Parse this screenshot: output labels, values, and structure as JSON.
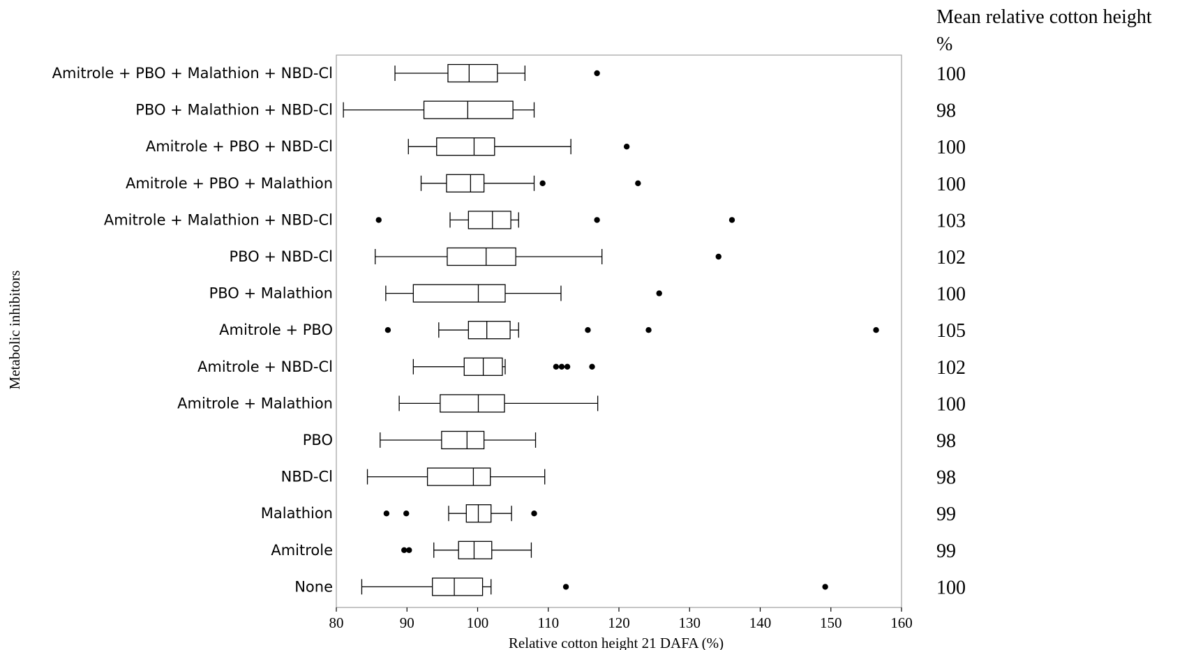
{
  "chart_data": {
    "type": "boxplot",
    "orientation": "horizontal",
    "xlabel": "Relative cotton height 21 DAFA (%)",
    "ylabel": "Metabolic inhibitors",
    "xlim": [
      80,
      160
    ],
    "xticks": [
      80,
      90,
      100,
      110,
      120,
      130,
      140,
      150,
      160
    ],
    "right_header": [
      "Mean relative cotton height",
      "%"
    ],
    "groups": [
      {
        "label": "Amitrole + PBO + Malathion + NBD-Cl",
        "whisker_low": 88.3,
        "q1": 95.8,
        "median": 98.8,
        "q3": 102.8,
        "whisker_high": 106.7,
        "outliers": [
          116.9
        ],
        "mean": "100"
      },
      {
        "label": "PBO + Malathion + NBD-Cl",
        "whisker_low": 81.0,
        "q1": 92.4,
        "median": 98.6,
        "q3": 105.0,
        "whisker_high": 108.0,
        "outliers": [],
        "mean": "98"
      },
      {
        "label": "Amitrole + PBO + NBD-Cl",
        "whisker_low": 90.2,
        "q1": 94.2,
        "median": 99.5,
        "q3": 102.4,
        "whisker_high": 113.2,
        "outliers": [
          121.1
        ],
        "mean": "100"
      },
      {
        "label": "Amitrole + PBO + Malathion",
        "whisker_low": 92.0,
        "q1": 95.6,
        "median": 99.0,
        "q3": 100.9,
        "whisker_high": 108.0,
        "outliers": [
          109.2,
          122.7
        ],
        "mean": "100"
      },
      {
        "label": "Amitrole + Malathion + NBD-Cl",
        "whisker_low": 96.1,
        "q1": 98.7,
        "median": 102.1,
        "q3": 104.7,
        "whisker_high": 105.8,
        "outliers": [
          86.0,
          116.9,
          136.0
        ],
        "mean": "103"
      },
      {
        "label": "PBO + NBD-Cl",
        "whisker_low": 85.5,
        "q1": 95.7,
        "median": 101.2,
        "q3": 105.4,
        "whisker_high": 117.6,
        "outliers": [
          134.1
        ],
        "mean": "102"
      },
      {
        "label": "PBO + Malathion",
        "whisker_low": 87.0,
        "q1": 90.9,
        "median": 100.1,
        "q3": 103.9,
        "whisker_high": 111.8,
        "outliers": [
          125.7
        ],
        "mean": "100"
      },
      {
        "label": "Amitrole + PBO",
        "whisker_low": 94.5,
        "q1": 98.7,
        "median": 101.3,
        "q3": 104.6,
        "whisker_high": 105.8,
        "outliers": [
          87.3,
          115.6,
          124.2,
          156.4
        ],
        "mean": "105"
      },
      {
        "label": "Amitrole + NBD-Cl",
        "whisker_low": 90.9,
        "q1": 98.1,
        "median": 100.8,
        "q3": 103.5,
        "whisker_high": 103.9,
        "outliers": [
          111.1,
          111.9,
          112.7,
          116.2
        ],
        "mean": "102"
      },
      {
        "label": "Amitrole + Malathion",
        "whisker_low": 88.9,
        "q1": 94.7,
        "median": 100.1,
        "q3": 103.8,
        "whisker_high": 117.0,
        "outliers": [],
        "mean": "100"
      },
      {
        "label": "PBO",
        "whisker_low": 86.2,
        "q1": 94.9,
        "median": 98.5,
        "q3": 100.9,
        "whisker_high": 108.2,
        "outliers": [],
        "mean": "98"
      },
      {
        "label": "NBD-Cl",
        "whisker_low": 84.4,
        "q1": 92.9,
        "median": 99.4,
        "q3": 101.8,
        "whisker_high": 109.5,
        "outliers": [],
        "mean": "98"
      },
      {
        "label": "Malathion",
        "whisker_low": 95.9,
        "q1": 98.4,
        "median": 100.1,
        "q3": 101.9,
        "whisker_high": 104.8,
        "outliers": [
          87.1,
          89.9,
          108.0
        ],
        "mean": "99"
      },
      {
        "label": "Amitrole",
        "whisker_low": 93.8,
        "q1": 97.3,
        "median": 99.5,
        "q3": 102.0,
        "whisker_high": 107.6,
        "outliers": [
          89.6,
          90.3
        ],
        "mean": "99"
      },
      {
        "label": "None",
        "whisker_low": 83.6,
        "q1": 93.6,
        "median": 96.7,
        "q3": 100.7,
        "whisker_high": 101.9,
        "outliers": [
          112.5,
          149.2
        ],
        "mean": "100"
      }
    ]
  }
}
